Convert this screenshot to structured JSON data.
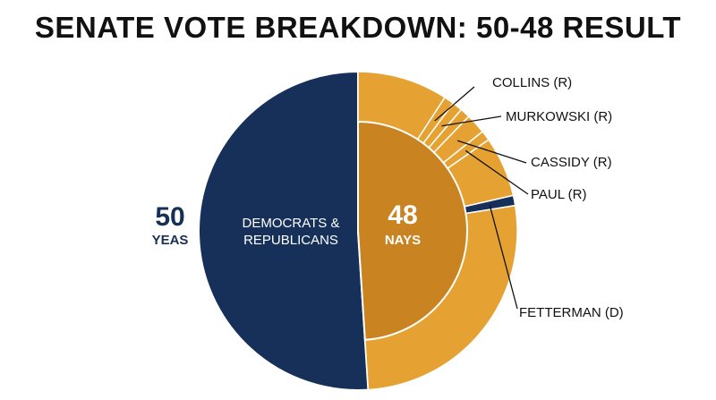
{
  "title": "SENATE VOTE BREAKDOWN: 50-48 RESULT",
  "colors": {
    "yeas": "#17305a",
    "nays_inner": "#c98320",
    "nays_outer": "#e5a232",
    "divider": "#ffffff",
    "text_dark": "#111111",
    "text_light": "#ffffff"
  },
  "chart_data": {
    "type": "pie",
    "title": "SENATE VOTE BREAKDOWN: 50-48 RESULT",
    "inner": [
      {
        "name": "Yeas",
        "value": 50,
        "label_number": "50",
        "label_text": "YEAS",
        "inside_label": [
          "DEMOCRATS &",
          "REPUBLICANS"
        ],
        "color": "#17305a"
      },
      {
        "name": "Nays",
        "value": 48,
        "label_number": "48",
        "label_text": "NAYS",
        "color": "#c98320"
      }
    ],
    "outer_ring_nays": [
      {
        "name": "",
        "value": 9,
        "color": "#e5a232"
      },
      {
        "name": "COLLINS (R)",
        "value": 1,
        "color": "#e5a232"
      },
      {
        "name": "MURKOWSKI (R)",
        "value": 1,
        "color": "#e5a232"
      },
      {
        "name": "",
        "value": 1,
        "color": "#e5a232"
      },
      {
        "name": "CASSIDY (R)",
        "value": 2,
        "color": "#e5a232"
      },
      {
        "name": "PAUL (R)",
        "value": 1,
        "color": "#e5a232"
      },
      {
        "name": "",
        "value": 6,
        "color": "#e5a232"
      },
      {
        "name": "FETTERMAN (D)",
        "value": 1,
        "color": "#17305a"
      },
      {
        "name": "",
        "value": 26,
        "color": "#e5a232"
      }
    ],
    "legend": "none",
    "grid": false
  }
}
